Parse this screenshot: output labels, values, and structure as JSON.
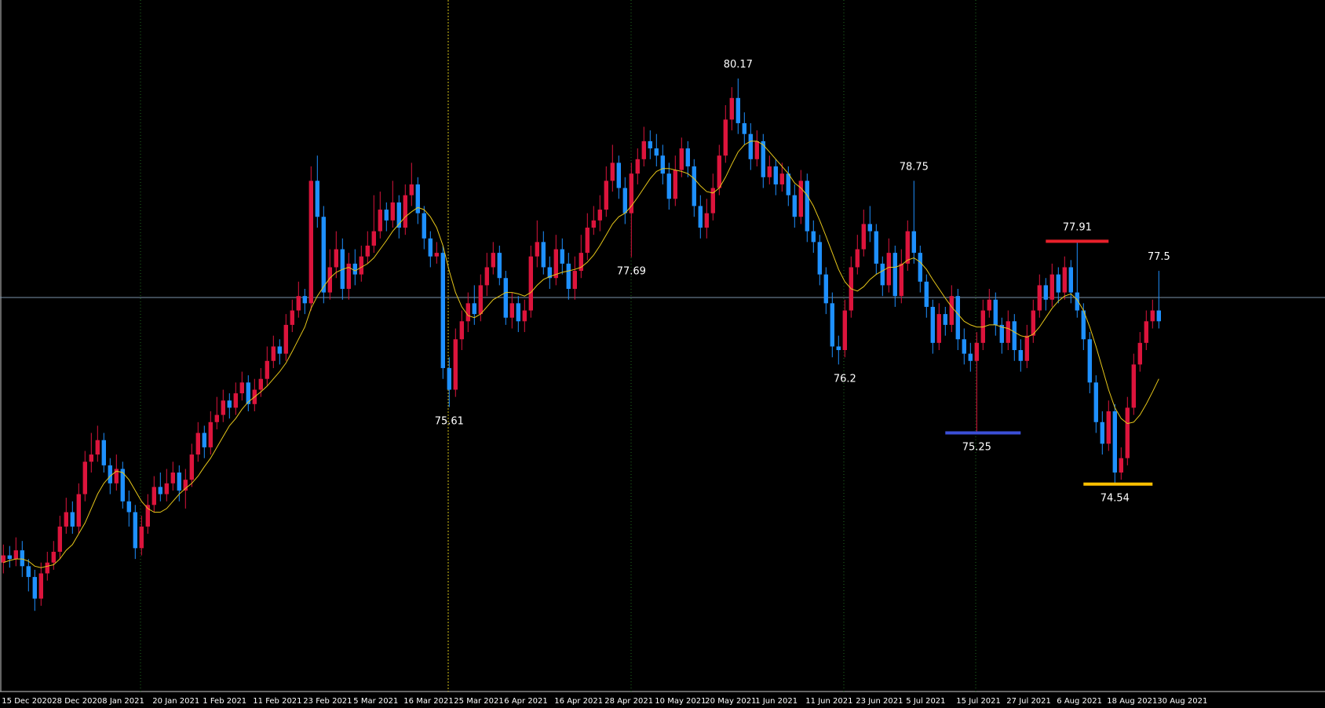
{
  "chart_data": {
    "type": "candlestick",
    "ylim": [
      71.66,
      81.26
    ],
    "bull_color": "#dc143c",
    "bear_color": "#1e90ff",
    "ma_color": "#e6c619",
    "price_line": 77.13,
    "price_line_color": "#7d93ad",
    "categories": [
      "15 Dec 2020",
      null,
      null,
      null,
      null,
      null,
      null,
      null,
      "28 Dec 2020",
      null,
      null,
      null,
      null,
      null,
      null,
      null,
      "8 Jan 2021",
      null,
      null,
      null,
      null,
      null,
      null,
      null,
      "20 Jan 2021",
      null,
      null,
      null,
      null,
      null,
      null,
      null,
      "1 Feb 2021",
      null,
      null,
      null,
      null,
      null,
      null,
      null,
      "11 Feb 2021",
      null,
      null,
      null,
      null,
      null,
      null,
      null,
      "23 Feb 2021",
      null,
      null,
      null,
      null,
      null,
      null,
      null,
      "5 Mar 2021",
      null,
      null,
      null,
      null,
      null,
      null,
      null,
      "16 Mar 2021",
      null,
      null,
      null,
      null,
      null,
      null,
      null,
      "25 Mar 2021",
      null,
      null,
      null,
      null,
      null,
      null,
      null,
      "6 Apr 2021",
      null,
      null,
      null,
      null,
      null,
      null,
      null,
      "16 Apr 2021",
      null,
      null,
      null,
      null,
      null,
      null,
      null,
      "28 Apr 2021",
      null,
      null,
      null,
      null,
      null,
      null,
      null,
      "10 May 2021",
      null,
      null,
      null,
      null,
      null,
      null,
      null,
      "20 May 2021",
      null,
      null,
      null,
      null,
      null,
      null,
      null,
      "1 Jun 2021",
      null,
      null,
      null,
      null,
      null,
      null,
      null,
      "11 Jun 2021",
      null,
      null,
      null,
      null,
      null,
      null,
      null,
      "23 Jun 2021",
      null,
      null,
      null,
      null,
      null,
      null,
      null,
      "5 Jul 2021",
      null,
      null,
      null,
      null,
      null,
      null,
      null,
      "15 Jul 2021",
      null,
      null,
      null,
      null,
      null,
      null,
      null,
      "27 Jul 2021",
      null,
      null,
      null,
      null,
      null,
      null,
      null,
      "6 Aug 2021",
      null,
      null,
      null,
      null,
      null,
      null,
      null,
      "18 Aug 2021",
      null,
      null,
      null,
      null,
      null,
      null,
      null,
      "30 Aug 2021"
    ],
    "ohlc": [
      [
        73.45,
        73.7,
        73.3,
        73.55
      ],
      [
        73.55,
        73.68,
        73.38,
        73.5
      ],
      [
        73.5,
        73.8,
        73.4,
        73.62
      ],
      [
        73.62,
        73.75,
        73.25,
        73.4
      ],
      [
        73.4,
        73.5,
        73.05,
        73.25
      ],
      [
        73.25,
        73.35,
        72.78,
        72.95
      ],
      [
        72.95,
        73.45,
        72.85,
        73.3
      ],
      [
        73.3,
        73.6,
        73.2,
        73.45
      ],
      [
        73.45,
        73.75,
        73.35,
        73.6
      ],
      [
        73.6,
        74.1,
        73.5,
        73.95
      ],
      [
        73.95,
        74.35,
        73.85,
        74.15
      ],
      [
        74.15,
        74.3,
        73.85,
        73.95
      ],
      [
        73.95,
        74.55,
        73.85,
        74.4
      ],
      [
        74.4,
        75.0,
        74.3,
        74.85
      ],
      [
        74.85,
        75.25,
        74.7,
        74.95
      ],
      [
        74.95,
        75.35,
        74.85,
        75.15
      ],
      [
        75.15,
        75.25,
        74.7,
        74.8
      ],
      [
        74.8,
        74.9,
        74.4,
        74.55
      ],
      [
        74.55,
        74.95,
        74.45,
        74.75
      ],
      [
        74.75,
        74.85,
        74.2,
        74.3
      ],
      [
        74.3,
        74.45,
        73.95,
        74.15
      ],
      [
        74.15,
        74.25,
        73.5,
        73.65
      ],
      [
        73.65,
        74.1,
        73.55,
        73.95
      ],
      [
        73.95,
        74.4,
        73.85,
        74.25
      ],
      [
        74.25,
        74.65,
        74.15,
        74.5
      ],
      [
        74.5,
        74.7,
        74.3,
        74.4
      ],
      [
        74.4,
        74.75,
        74.3,
        74.55
      ],
      [
        74.55,
        74.85,
        74.45,
        74.7
      ],
      [
        74.7,
        74.8,
        74.3,
        74.45
      ],
      [
        74.45,
        74.75,
        74.2,
        74.6
      ],
      [
        74.6,
        75.1,
        74.5,
        74.95
      ],
      [
        74.95,
        75.4,
        74.85,
        75.25
      ],
      [
        75.25,
        75.35,
        74.9,
        75.05
      ],
      [
        75.05,
        75.55,
        74.95,
        75.4
      ],
      [
        75.4,
        75.75,
        75.3,
        75.5
      ],
      [
        75.5,
        75.85,
        75.4,
        75.7
      ],
      [
        75.7,
        75.8,
        75.45,
        75.6
      ],
      [
        75.6,
        75.95,
        75.5,
        75.8
      ],
      [
        75.8,
        76.1,
        75.7,
        75.95
      ],
      [
        75.95,
        76.05,
        75.55,
        75.65
      ],
      [
        75.65,
        76.0,
        75.55,
        75.85
      ],
      [
        75.85,
        76.15,
        75.75,
        76.0
      ],
      [
        76.0,
        76.45,
        75.9,
        76.25
      ],
      [
        76.25,
        76.6,
        76.15,
        76.45
      ],
      [
        76.45,
        76.55,
        76.2,
        76.35
      ],
      [
        76.35,
        76.9,
        76.25,
        76.75
      ],
      [
        76.75,
        77.1,
        76.65,
        76.95
      ],
      [
        76.95,
        77.35,
        76.85,
        77.15
      ],
      [
        77.15,
        77.25,
        76.9,
        77.05
      ],
      [
        77.05,
        78.95,
        76.95,
        78.75
      ],
      [
        78.75,
        79.1,
        78.1,
        78.25
      ],
      [
        78.25,
        78.4,
        77.05,
        77.2
      ],
      [
        77.2,
        77.8,
        77.1,
        77.55
      ],
      [
        77.55,
        78.05,
        77.4,
        77.8
      ],
      [
        77.8,
        77.95,
        77.1,
        77.25
      ],
      [
        77.25,
        77.75,
        77.1,
        77.6
      ],
      [
        77.6,
        77.8,
        77.3,
        77.45
      ],
      [
        77.45,
        77.85,
        77.35,
        77.7
      ],
      [
        77.7,
        78.05,
        77.6,
        77.85
      ],
      [
        77.85,
        78.55,
        77.75,
        78.05
      ],
      [
        78.05,
        78.6,
        77.95,
        78.35
      ],
      [
        78.35,
        78.45,
        78.05,
        78.2
      ],
      [
        78.2,
        78.75,
        78.1,
        78.45
      ],
      [
        78.45,
        78.55,
        77.95,
        78.1
      ],
      [
        78.1,
        78.7,
        78.0,
        78.55
      ],
      [
        78.55,
        79.0,
        78.4,
        78.7
      ],
      [
        78.7,
        78.8,
        78.15,
        78.3
      ],
      [
        78.3,
        78.4,
        77.8,
        77.95
      ],
      [
        77.95,
        78.05,
        77.55,
        77.7
      ],
      [
        77.7,
        77.9,
        77.6,
        77.75
      ],
      [
        77.75,
        77.85,
        76.0,
        76.15
      ],
      [
        76.15,
        76.3,
        75.61,
        75.85
      ],
      [
        75.85,
        76.7,
        75.75,
        76.55
      ],
      [
        76.55,
        76.95,
        76.4,
        76.8
      ],
      [
        76.8,
        77.2,
        76.65,
        77.05
      ],
      [
        77.05,
        77.3,
        76.75,
        76.9
      ],
      [
        76.9,
        77.45,
        76.8,
        77.3
      ],
      [
        77.3,
        77.75,
        77.15,
        77.55
      ],
      [
        77.55,
        77.9,
        77.45,
        77.75
      ],
      [
        77.75,
        77.85,
        77.3,
        77.4
      ],
      [
        77.4,
        77.5,
        76.75,
        76.85
      ],
      [
        76.85,
        77.2,
        76.7,
        77.05
      ],
      [
        77.05,
        77.15,
        76.65,
        76.8
      ],
      [
        76.8,
        77.1,
        76.65,
        76.95
      ],
      [
        76.95,
        77.85,
        76.85,
        77.7
      ],
      [
        77.7,
        78.2,
        77.55,
        77.9
      ],
      [
        77.9,
        78.05,
        77.45,
        77.55
      ],
      [
        77.55,
        77.7,
        77.25,
        77.4
      ],
      [
        77.4,
        78.0,
        77.3,
        77.8
      ],
      [
        77.8,
        77.95,
        77.45,
        77.6
      ],
      [
        77.6,
        77.75,
        77.1,
        77.25
      ],
      [
        77.25,
        77.7,
        77.1,
        77.5
      ],
      [
        77.5,
        78.0,
        77.4,
        77.75
      ],
      [
        77.75,
        78.3,
        77.65,
        78.1
      ],
      [
        78.1,
        78.4,
        78.0,
        78.2
      ],
      [
        78.2,
        78.55,
        78.05,
        78.35
      ],
      [
        78.35,
        78.95,
        78.25,
        78.75
      ],
      [
        78.75,
        79.25,
        78.6,
        79.0
      ],
      [
        79.0,
        79.1,
        78.5,
        78.65
      ],
      [
        78.65,
        78.8,
        78.15,
        78.3
      ],
      [
        78.3,
        79.0,
        77.69,
        78.85
      ],
      [
        78.85,
        79.2,
        78.7,
        79.05
      ],
      [
        79.05,
        79.5,
        78.95,
        79.3
      ],
      [
        79.3,
        79.45,
        79.05,
        79.2
      ],
      [
        79.2,
        79.4,
        78.95,
        79.1
      ],
      [
        79.1,
        79.25,
        78.7,
        78.85
      ],
      [
        78.85,
        79.0,
        78.35,
        78.5
      ],
      [
        78.5,
        79.1,
        78.4,
        78.9
      ],
      [
        78.9,
        79.35,
        78.8,
        79.2
      ],
      [
        79.2,
        79.3,
        78.8,
        78.95
      ],
      [
        78.95,
        79.05,
        78.25,
        78.4
      ],
      [
        78.4,
        78.55,
        77.95,
        78.1
      ],
      [
        78.1,
        78.5,
        77.95,
        78.3
      ],
      [
        78.3,
        78.85,
        78.2,
        78.65
      ],
      [
        78.65,
        79.25,
        78.55,
        79.1
      ],
      [
        79.1,
        79.8,
        79.0,
        79.6
      ],
      [
        79.6,
        80.05,
        79.45,
        79.9
      ],
      [
        79.9,
        80.17,
        79.4,
        79.55
      ],
      [
        79.55,
        79.7,
        79.25,
        79.4
      ],
      [
        79.4,
        79.55,
        78.9,
        79.05
      ],
      [
        79.05,
        79.45,
        78.95,
        79.3
      ],
      [
        79.3,
        79.4,
        78.65,
        78.8
      ],
      [
        78.8,
        79.1,
        78.7,
        78.95
      ],
      [
        78.95,
        79.05,
        78.55,
        78.7
      ],
      [
        78.7,
        79.0,
        78.6,
        78.85
      ],
      [
        78.85,
        78.95,
        78.4,
        78.55
      ],
      [
        78.55,
        78.7,
        78.1,
        78.25
      ],
      [
        78.25,
        78.9,
        78.15,
        78.75
      ],
      [
        78.75,
        78.85,
        77.9,
        78.05
      ],
      [
        78.05,
        78.2,
        77.75,
        77.9
      ],
      [
        77.9,
        78.0,
        77.3,
        77.45
      ],
      [
        77.45,
        77.55,
        76.9,
        77.05
      ],
      [
        77.05,
        77.2,
        76.3,
        76.45
      ],
      [
        76.45,
        76.6,
        76.2,
        76.4
      ],
      [
        76.4,
        77.1,
        76.3,
        76.95
      ],
      [
        76.95,
        77.7,
        76.85,
        77.55
      ],
      [
        77.55,
        78.0,
        77.45,
        77.8
      ],
      [
        77.8,
        78.35,
        77.7,
        78.15
      ],
      [
        78.15,
        78.4,
        77.9,
        78.05
      ],
      [
        78.05,
        78.15,
        77.45,
        77.6
      ],
      [
        77.6,
        77.7,
        77.15,
        77.3
      ],
      [
        77.3,
        77.95,
        77.2,
        77.75
      ],
      [
        77.75,
        77.85,
        77.0,
        77.15
      ],
      [
        77.15,
        77.8,
        77.05,
        77.6
      ],
      [
        77.6,
        78.2,
        77.5,
        78.05
      ],
      [
        78.05,
        78.75,
        77.6,
        77.75
      ],
      [
        77.75,
        77.85,
        77.2,
        77.35
      ],
      [
        77.35,
        77.45,
        76.85,
        77.0
      ],
      [
        77.0,
        77.1,
        76.35,
        76.5
      ],
      [
        76.5,
        77.05,
        76.4,
        76.9
      ],
      [
        76.9,
        77.0,
        76.6,
        76.75
      ],
      [
        76.75,
        77.3,
        76.65,
        77.15
      ],
      [
        77.15,
        77.25,
        76.4,
        76.55
      ],
      [
        76.55,
        76.7,
        76.2,
        76.35
      ],
      [
        76.35,
        76.5,
        76.1,
        76.25
      ],
      [
        76.25,
        76.65,
        75.25,
        76.5
      ],
      [
        76.5,
        77.1,
        76.4,
        76.95
      ],
      [
        76.95,
        77.25,
        76.85,
        77.1
      ],
      [
        77.1,
        77.2,
        76.6,
        76.75
      ],
      [
        76.75,
        76.85,
        76.35,
        76.5
      ],
      [
        76.5,
        76.95,
        76.4,
        76.8
      ],
      [
        76.8,
        76.9,
        76.25,
        76.4
      ],
      [
        76.4,
        76.55,
        76.1,
        76.25
      ],
      [
        76.25,
        76.75,
        76.15,
        76.6
      ],
      [
        76.6,
        77.1,
        76.5,
        76.95
      ],
      [
        76.95,
        77.45,
        76.85,
        77.3
      ],
      [
        77.3,
        77.4,
        76.95,
        77.1
      ],
      [
        77.1,
        77.6,
        77.0,
        77.45
      ],
      [
        77.45,
        77.55,
        77.05,
        77.2
      ],
      [
        77.2,
        77.7,
        77.1,
        77.55
      ],
      [
        77.55,
        77.65,
        77.05,
        77.2
      ],
      [
        77.2,
        77.91,
        76.85,
        76.95
      ],
      [
        76.95,
        77.05,
        76.4,
        76.55
      ],
      [
        76.55,
        76.65,
        75.8,
        75.95
      ],
      [
        75.95,
        76.05,
        75.25,
        75.4
      ],
      [
        75.4,
        75.55,
        74.95,
        75.1
      ],
      [
        75.1,
        75.7,
        75.0,
        75.55
      ],
      [
        75.55,
        75.65,
        74.54,
        74.7
      ],
      [
        74.7,
        75.05,
        74.6,
        74.9
      ],
      [
        74.9,
        75.75,
        74.8,
        75.6
      ],
      [
        75.6,
        76.35,
        75.5,
        76.2
      ],
      [
        76.2,
        76.65,
        76.1,
        76.5
      ],
      [
        76.5,
        76.95,
        76.4,
        76.8
      ],
      [
        76.8,
        77.1,
        76.7,
        76.95
      ],
      [
        76.95,
        77.5,
        76.7,
        76.8
      ]
    ],
    "ma": [
      73.45,
      73.48,
      73.5,
      73.5,
      73.47,
      73.4,
      73.38,
      73.4,
      73.42,
      73.5,
      73.62,
      73.7,
      73.85,
      74.0,
      74.2,
      74.4,
      74.55,
      74.65,
      74.72,
      74.7,
      74.6,
      74.45,
      74.3,
      74.2,
      74.15,
      74.15,
      74.2,
      74.3,
      74.4,
      74.48,
      74.55,
      74.65,
      74.78,
      74.9,
      75.05,
      75.2,
      75.35,
      75.45,
      75.58,
      75.68,
      75.75,
      75.82,
      75.9,
      76.0,
      76.1,
      76.22,
      76.38,
      76.55,
      76.72,
      76.98,
      77.15,
      77.28,
      77.4,
      77.48,
      77.52,
      77.55,
      77.5,
      77.55,
      77.6,
      77.68,
      77.8,
      77.92,
      78.05,
      78.15,
      78.25,
      78.32,
      78.38,
      78.35,
      78.25,
      78.1,
      77.85,
      77.5,
      77.2,
      77.0,
      76.88,
      76.85,
      76.9,
      77.0,
      77.1,
      77.15,
      77.2,
      77.2,
      77.18,
      77.15,
      77.2,
      77.3,
      77.38,
      77.42,
      77.45,
      77.48,
      77.5,
      77.52,
      77.55,
      77.62,
      77.72,
      77.85,
      78.0,
      78.15,
      78.25,
      78.3,
      78.4,
      78.52,
      78.65,
      78.78,
      78.88,
      78.92,
      78.92,
      78.9,
      78.88,
      78.85,
      78.78,
      78.68,
      78.6,
      78.58,
      78.65,
      78.8,
      78.98,
      79.15,
      79.25,
      79.3,
      79.3,
      79.25,
      79.15,
      79.05,
      78.95,
      78.85,
      78.72,
      78.65,
      78.55,
      78.4,
      78.2,
      77.98,
      77.75,
      77.52,
      77.35,
      77.25,
      77.22,
      77.28,
      77.38,
      77.45,
      77.5,
      77.55,
      77.55,
      77.58,
      77.65,
      77.68,
      77.62,
      77.52,
      77.38,
      77.25,
      77.12,
      77.0,
      76.9,
      76.8,
      76.75,
      76.72,
      76.72,
      76.75,
      76.75,
      76.72,
      76.7,
      76.65,
      76.6,
      76.58,
      76.62,
      76.72,
      76.85,
      76.98,
      77.08,
      77.15,
      77.18,
      77.1,
      76.95,
      76.72,
      76.45,
      76.15,
      75.85,
      75.6,
      75.45,
      75.38,
      75.4,
      75.5,
      75.65,
      75.82,
      76.0
    ],
    "annotations": [
      {
        "value": 80.17,
        "bar": 117,
        "side": "above"
      },
      {
        "value": 75.61,
        "bar": 71,
        "side": "below"
      },
      {
        "value": 77.69,
        "bar": 100,
        "side": "below"
      },
      {
        "value": 76.2,
        "bar": 134,
        "side": "below"
      },
      {
        "value": 78.75,
        "bar": 145,
        "side": "above"
      },
      {
        "value": 75.25,
        "bar": 155,
        "side": "below",
        "line": [
          150,
          162
        ],
        "color": "#3b4fd8"
      },
      {
        "value": 77.91,
        "bar": 171,
        "side": "above",
        "line": [
          166,
          176
        ],
        "color": "#e8202a"
      },
      {
        "value": 74.54,
        "bar": 177,
        "side": "below",
        "line": [
          172,
          183
        ],
        "color": "#ffc000"
      },
      {
        "value": 77.5,
        "bar": 184,
        "side": "above"
      }
    ]
  }
}
